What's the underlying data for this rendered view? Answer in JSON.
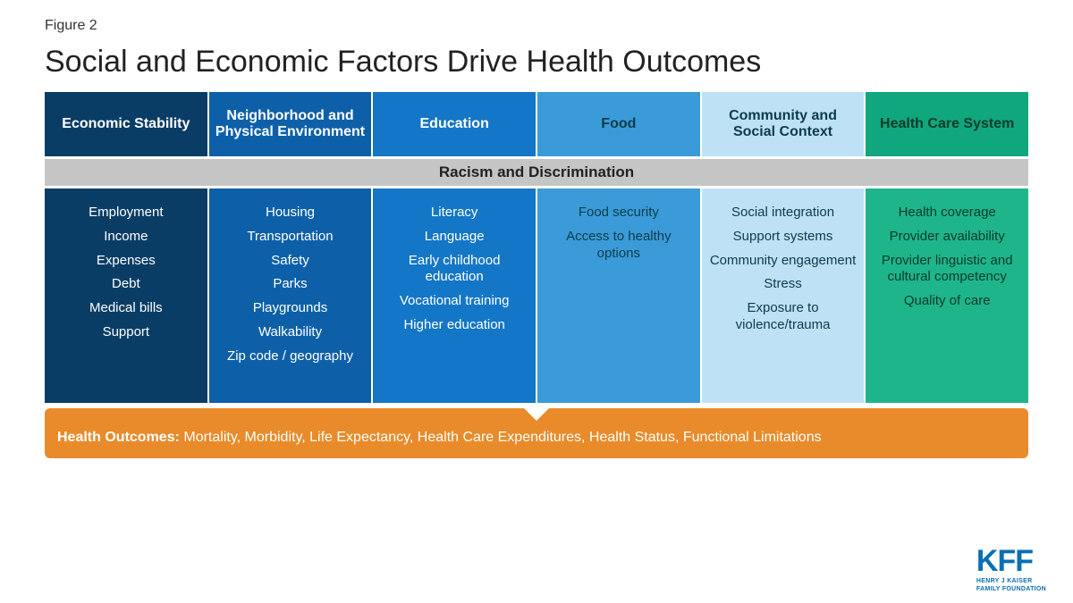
{
  "figure_label": "Figure 2",
  "title": "Social and Economic Factors Drive Health Outcomes",
  "banner": "Racism and Discrimination",
  "columns": [
    {
      "header": "Economic Stability",
      "header_bg": "#0a3d66",
      "header_fg": "#ffffff",
      "body_bg": "#0a3d66",
      "body_fg": "#ffffff",
      "items": [
        "Employment",
        "Income",
        "Expenses",
        "Debt",
        "Medical bills",
        "Support"
      ]
    },
    {
      "header": "Neighborhood and Physical Environment",
      "header_bg": "#0d60a8",
      "header_fg": "#ffffff",
      "body_bg": "#0d60a8",
      "body_fg": "#ffffff",
      "items": [
        "Housing",
        "Transportation",
        "Safety",
        "Parks",
        "Playgrounds",
        "Walkability",
        "Zip code / geography"
      ]
    },
    {
      "header": "Education",
      "header_bg": "#1476c6",
      "header_fg": "#ffffff",
      "body_bg": "#1476c6",
      "body_fg": "#ffffff",
      "items": [
        "Literacy",
        "Language",
        "Early childhood education",
        "Vocational training",
        "Higher education"
      ]
    },
    {
      "header": "Food",
      "header_bg": "#3b9bd8",
      "header_fg": "#0a3d4a",
      "body_bg": "#3b9bd8",
      "body_fg": "#0a3d4a",
      "items": [
        "Food security",
        "Access to healthy options"
      ]
    },
    {
      "header": "Community and Social Context",
      "header_bg": "#bfe1f5",
      "header_fg": "#0a3d4a",
      "body_bg": "#bfe1f5",
      "body_fg": "#0a3d4a",
      "items": [
        "Social integration",
        "Support systems",
        "Community engagement",
        "Stress",
        "Exposure to violence/trauma"
      ]
    },
    {
      "header": "Health Care System",
      "header_bg": "#11a77e",
      "header_fg": "#053a2c",
      "body_bg": "#1fb58b",
      "body_fg": "#053a2c",
      "items": [
        "Health coverage",
        "Provider availability",
        "Provider linguistic and cultural competency",
        "Quality of care"
      ]
    }
  ],
  "outcomes": {
    "label": "Health Outcomes:",
    "text": "Mortality, Morbidity, Life Expectancy, Health Care Expenditures, Health Status, Functional Limitations",
    "bg": "#e98b2a",
    "fg": "#ffffff"
  },
  "banner_bg": "#c5c5c5",
  "banner_fg": "#222222",
  "logo": {
    "big": "KFF",
    "line1": "HENRY J KAISER",
    "line2": "FAMILY FOUNDATION",
    "color": "#0a6fb3"
  },
  "typography": {
    "title_fontsize": 34,
    "header_fontsize": 16,
    "body_fontsize": 15,
    "banner_fontsize": 17,
    "outcomes_fontsize": 16
  }
}
